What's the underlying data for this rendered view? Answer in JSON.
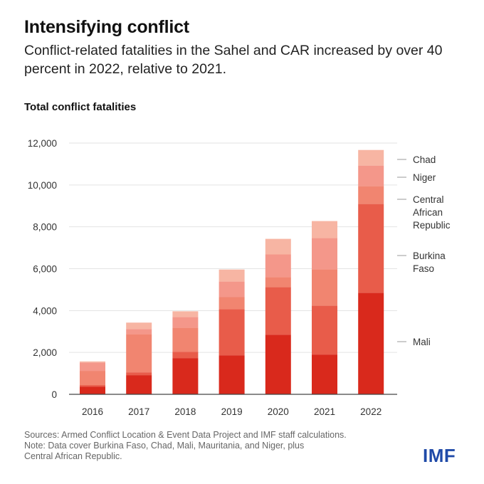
{
  "header": {
    "title": "Intensifying conflict",
    "subtitle": "Conflict-related fatalities in the Sahel and CAR increased by over 40 percent in 2022, relative to 2021."
  },
  "chart_data": {
    "type": "bar",
    "stacked": true,
    "title": "Total conflict fatalities",
    "xlabel": "",
    "ylabel": "",
    "ylim": [
      0,
      12000
    ],
    "yticks": [
      0,
      2000,
      4000,
      6000,
      8000,
      10000,
      12000
    ],
    "ytick_labels": [
      "0",
      "2,000",
      "4,000",
      "6,000",
      "8,000",
      "10,000",
      "12,000"
    ],
    "grid": true,
    "legend_position": "right",
    "categories": [
      "2016",
      "2017",
      "2018",
      "2019",
      "2020",
      "2021",
      "2022"
    ],
    "series": [
      {
        "name": "Mali",
        "color": "#d9291c",
        "values": [
          370,
          915,
          1730,
          1865,
          2850,
          1900,
          4850
        ]
      },
      {
        "name": "Burkina Faso",
        "color": "#e85c4a",
        "values": [
          70,
          135,
          305,
          2200,
          2270,
          2340,
          4240
        ]
      },
      {
        "name": "Central African Republic",
        "color": "#f18570",
        "values": [
          680,
          1830,
          1150,
          575,
          475,
          1730,
          850
        ]
      },
      {
        "name": "Niger",
        "color": "#f4978a",
        "values": [
          400,
          240,
          510,
          745,
          1085,
          1490,
          985
        ]
      },
      {
        "name": "Chad",
        "color": "#f7b5a3",
        "values": [
          50,
          305,
          270,
          575,
          745,
          815,
          745
        ]
      }
    ],
    "legend_labels": [
      {
        "series": "Chad",
        "lines": [
          "Chad"
        ]
      },
      {
        "series": "Niger",
        "lines": [
          "Niger"
        ]
      },
      {
        "series": "Central African Republic",
        "lines": [
          "Central",
          "African",
          "Republic"
        ]
      },
      {
        "series": "Burkina Faso",
        "lines": [
          "Burkina",
          "Faso"
        ]
      },
      {
        "series": "Mali",
        "lines": [
          "Mali"
        ]
      }
    ]
  },
  "footer": {
    "sources": "Sources: Armed Conflict Location & Event Data Project and IMF staff calculations.",
    "note_line1": "Note: Data cover Burkina Faso, Chad, Mali, Mauritania, and Niger, plus",
    "note_line2": "Central African Republic."
  },
  "brand": {
    "logo_text": "IMF",
    "logo_color": "#1f4aa8"
  }
}
